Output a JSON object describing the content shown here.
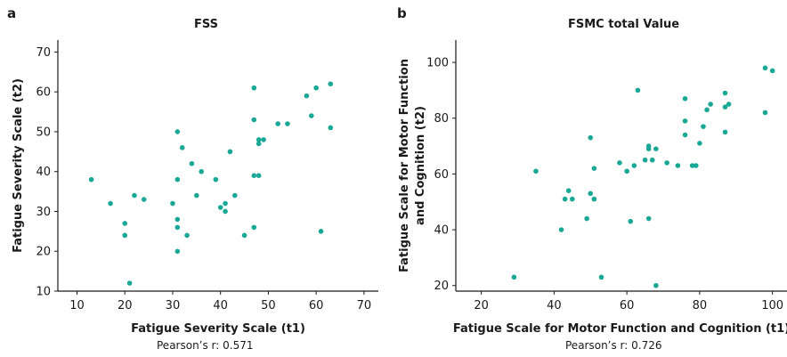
{
  "chart_data": [
    {
      "type": "scatter",
      "panel_letter": "a",
      "title": "FSS",
      "xlabel": "Fatigue Severity Scale (t1)",
      "ylabel_lines": [
        "Fatigue Severity Scale (t2)"
      ],
      "xlim": [
        6,
        73
      ],
      "ylim": [
        10,
        73
      ],
      "xticks": [
        10,
        20,
        30,
        40,
        50,
        60,
        70
      ],
      "yticks": [
        10,
        20,
        30,
        40,
        50,
        60,
        70
      ],
      "color": "#1aa896",
      "caption": "Pearson’s r: 0.571",
      "points": [
        [
          13,
          38
        ],
        [
          17,
          32
        ],
        [
          20,
          27
        ],
        [
          20,
          24
        ],
        [
          21,
          12
        ],
        [
          22,
          34
        ],
        [
          24,
          33
        ],
        [
          30,
          32
        ],
        [
          31,
          50
        ],
        [
          31,
          38
        ],
        [
          31,
          28
        ],
        [
          31,
          26
        ],
        [
          31,
          20
        ],
        [
          32,
          46
        ],
        [
          33,
          24
        ],
        [
          34,
          42
        ],
        [
          35,
          34
        ],
        [
          36,
          40
        ],
        [
          39,
          38
        ],
        [
          40,
          31
        ],
        [
          41,
          32
        ],
        [
          41,
          30
        ],
        [
          42,
          45
        ],
        [
          43,
          34
        ],
        [
          45,
          24
        ],
        [
          47,
          61
        ],
        [
          47,
          53
        ],
        [
          47,
          39
        ],
        [
          47,
          26
        ],
        [
          48,
          48
        ],
        [
          48,
          47
        ],
        [
          48,
          39
        ],
        [
          49,
          48
        ],
        [
          52,
          52
        ],
        [
          54,
          52
        ],
        [
          58,
          59
        ],
        [
          59,
          54
        ],
        [
          60,
          61
        ],
        [
          61,
          25
        ],
        [
          63,
          62
        ],
        [
          63,
          51
        ]
      ]
    },
    {
      "type": "scatter",
      "panel_letter": "b",
      "title": "FSMC total Value",
      "xlabel": "Fatigue Scale for Motor Function and Cognition (t1)",
      "ylabel_lines": [
        "Fatigue Scale for Motor Function",
        "and Cognition (t2)"
      ],
      "xlim": [
        13,
        104
      ],
      "ylim": [
        18,
        108
      ],
      "xticks": [
        20,
        40,
        60,
        80,
        100
      ],
      "yticks": [
        20,
        40,
        60,
        80,
        100
      ],
      "color": "#1aa896",
      "caption": "Pearson’s r: 0.726",
      "points": [
        [
          29,
          23
        ],
        [
          35,
          61
        ],
        [
          42,
          40
        ],
        [
          43,
          51
        ],
        [
          44,
          54
        ],
        [
          45,
          51
        ],
        [
          49,
          44
        ],
        [
          50,
          53
        ],
        [
          50,
          73
        ],
        [
          51,
          51
        ],
        [
          51,
          62
        ],
        [
          53,
          23
        ],
        [
          58,
          64
        ],
        [
          60,
          61
        ],
        [
          61,
          43
        ],
        [
          62,
          63
        ],
        [
          63,
          90
        ],
        [
          65,
          65
        ],
        [
          66,
          70
        ],
        [
          66,
          69
        ],
        [
          66,
          44
        ],
        [
          67,
          65
        ],
        [
          68,
          69
        ],
        [
          68,
          20
        ],
        [
          71,
          64
        ],
        [
          74,
          63
        ],
        [
          76,
          87
        ],
        [
          76,
          79
        ],
        [
          76,
          74
        ],
        [
          78,
          63
        ],
        [
          79,
          63
        ],
        [
          80,
          71
        ],
        [
          81,
          77
        ],
        [
          82,
          83
        ],
        [
          83,
          85
        ],
        [
          87,
          89
        ],
        [
          87,
          84
        ],
        [
          87,
          75
        ],
        [
          88,
          85
        ],
        [
          98,
          98
        ],
        [
          98,
          82
        ],
        [
          100,
          97
        ]
      ]
    }
  ]
}
